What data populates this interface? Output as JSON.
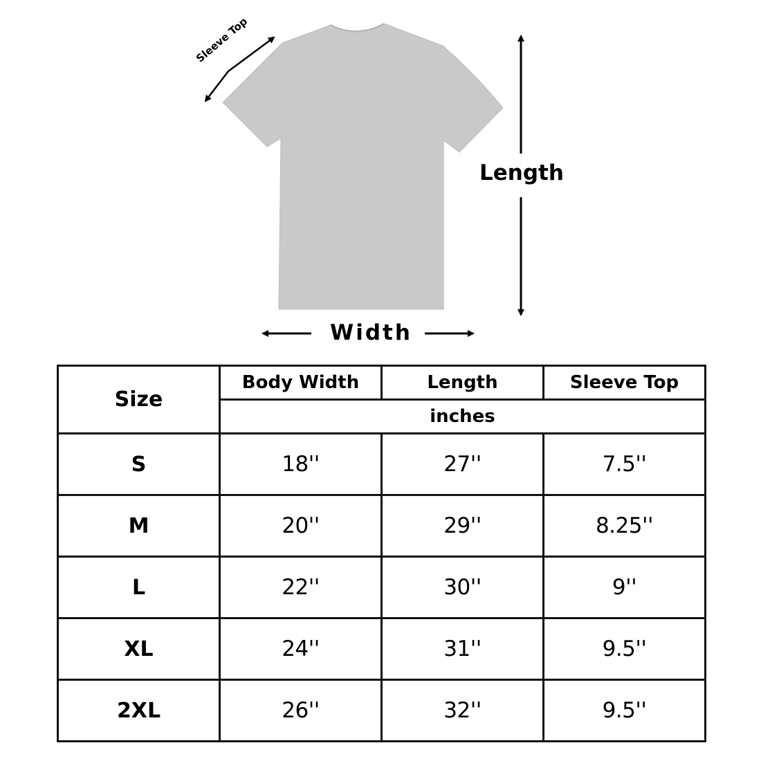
{
  "diagram": {
    "sleeve_label": "Sleeve Top",
    "length_label": "Length",
    "width_label": "Width",
    "shirt_color": "#c9c9c9"
  },
  "table": {
    "size_header": "Size",
    "columns": [
      "Body Width",
      "Length",
      "Sleeve Top"
    ],
    "unit": "inches",
    "rows": [
      {
        "size": "S",
        "values": [
          "18''",
          "27''",
          "7.5''"
        ]
      },
      {
        "size": "M",
        "values": [
          "20''",
          "29''",
          "8.25''"
        ]
      },
      {
        "size": "L",
        "values": [
          "22''",
          "30''",
          "9''"
        ]
      },
      {
        "size": "XL",
        "values": [
          "24''",
          "31''",
          "9.5''"
        ]
      },
      {
        "size": "2XL",
        "values": [
          "26''",
          "32''",
          "9.5''"
        ]
      }
    ]
  }
}
